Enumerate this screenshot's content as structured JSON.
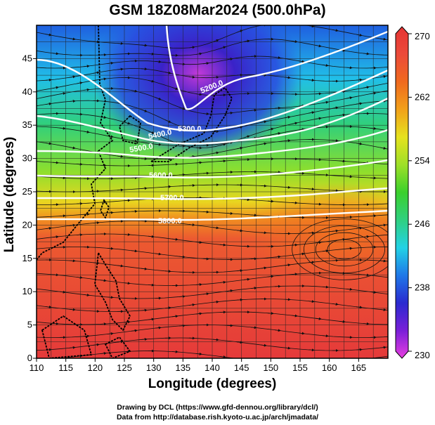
{
  "title": "GSM 18Z08Mar2024 (500.0hPa)",
  "xlabel": "Longitude (degrees)",
  "ylabel": "Latitude (degrees)",
  "credits": [
    "Drawing by DCL (https://www.gfd-dennou.org/library/dcl/)",
    "Data from http://database.rish.kyoto-u.ac.jp/arch/jmadata/"
  ],
  "chart_data": {
    "type": "heatmap",
    "x_range": [
      110,
      170
    ],
    "y_range": [
      0,
      50
    ],
    "x_ticks": [
      110,
      115,
      120,
      125,
      130,
      135,
      140,
      145,
      150,
      155,
      160,
      165
    ],
    "y_ticks": [
      0,
      5,
      10,
      15,
      20,
      25,
      30,
      35,
      40,
      45
    ],
    "colorbar": {
      "min": 230,
      "max": 270,
      "ticks": [
        230,
        238,
        246,
        254,
        262,
        270
      ],
      "stops": [
        "#e83ee0",
        "#7a1fd8",
        "#2a2ad0",
        "#1f78e8",
        "#22d2e6",
        "#2fd080",
        "#3ad02c",
        "#9ee028",
        "#e6e21e",
        "#f2a11a",
        "#f06a1e",
        "#ec4a3a",
        "#e53434"
      ]
    },
    "contour_labels": [
      "5200.0",
      "5300.0",
      "5400.0",
      "5500.0",
      "5600.0",
      "5700.0",
      "5800.0"
    ],
    "overlays": [
      "streamlines",
      "coastlines",
      "grid"
    ]
  }
}
